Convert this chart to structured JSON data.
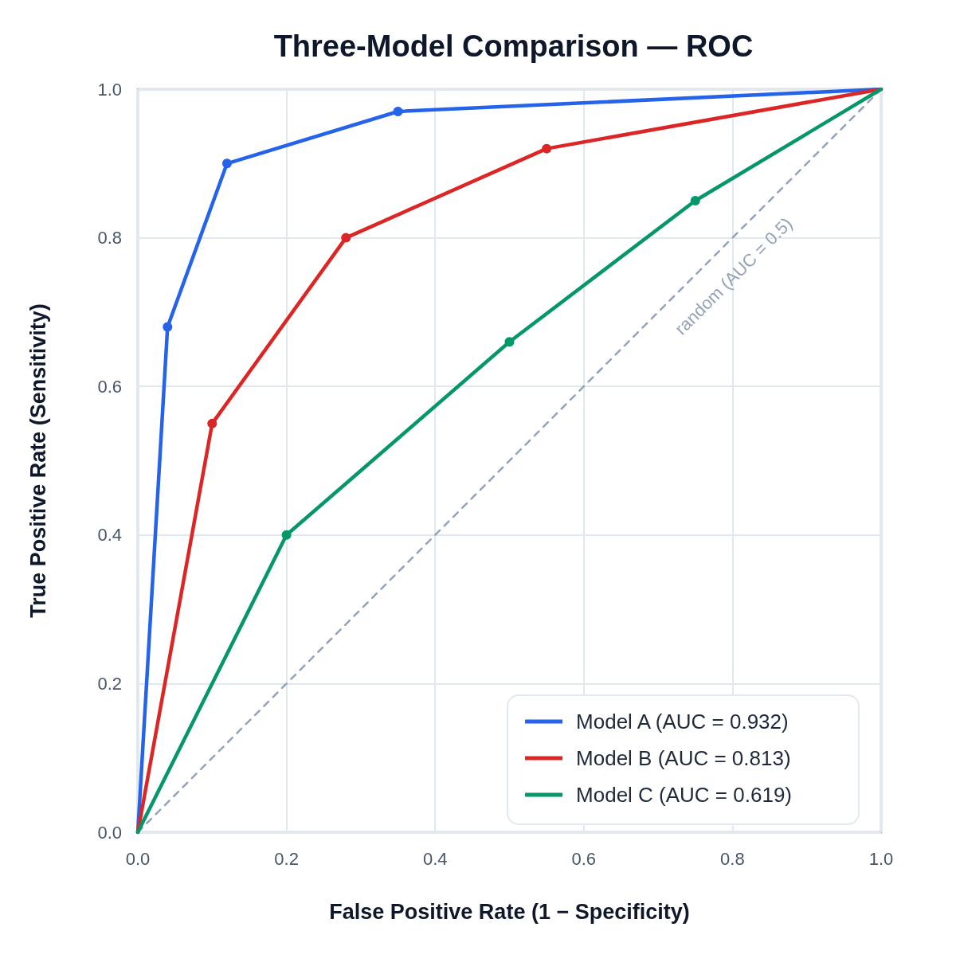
{
  "chart_data": {
    "type": "line",
    "title": "Three-Model Comparison — ROC",
    "xlabel": "False Positive Rate (1 − Specificity)",
    "ylabel": "True Positive Rate (Sensitivity)",
    "xlim": [
      0,
      1
    ],
    "ylim": [
      0,
      1
    ],
    "xticks": [
      {
        "value": 0,
        "label": "0.0"
      },
      0.2,
      0.4,
      0.6,
      0.8,
      {
        "value": 1,
        "label": "1.0"
      }
    ],
    "yticks": [
      {
        "value": 0,
        "label": "0.0"
      },
      0.2,
      0.4,
      0.6,
      0.8,
      {
        "value": 1,
        "label": "1.0"
      }
    ],
    "grid": true,
    "legend": "bottom right",
    "marker": "circle",
    "line_style": "solid",
    "annotations": [
      "random (AUC = 0.5)"
    ],
    "series": [
      {
        "name": "Model A (AUC = 0.932)",
        "color": "#2563eb",
        "x": [
          0,
          0.04,
          0.12,
          0.35,
          1
        ],
        "values": [
          0,
          0.68,
          0.9,
          0.97,
          1
        ]
      },
      {
        "name": "Model B (AUC = 0.813)",
        "color": "#dc2626",
        "x": [
          0,
          0.1,
          0.28,
          0.55,
          1
        ],
        "values": [
          0,
          0.55,
          0.8,
          0.92,
          1
        ]
      },
      {
        "name": "Model C (AUC = 0.619)",
        "color": "#059669",
        "x": [
          0,
          0.2,
          0.5,
          0.75,
          1
        ],
        "values": [
          0,
          0.4,
          0.66,
          0.85,
          1
        ]
      },
      {
        "color": "#94a3b8",
        "x": [
          0,
          1
        ],
        "values": [
          0,
          1
        ],
        "marker": "none",
        "line_style": "dashed"
      }
    ]
  }
}
